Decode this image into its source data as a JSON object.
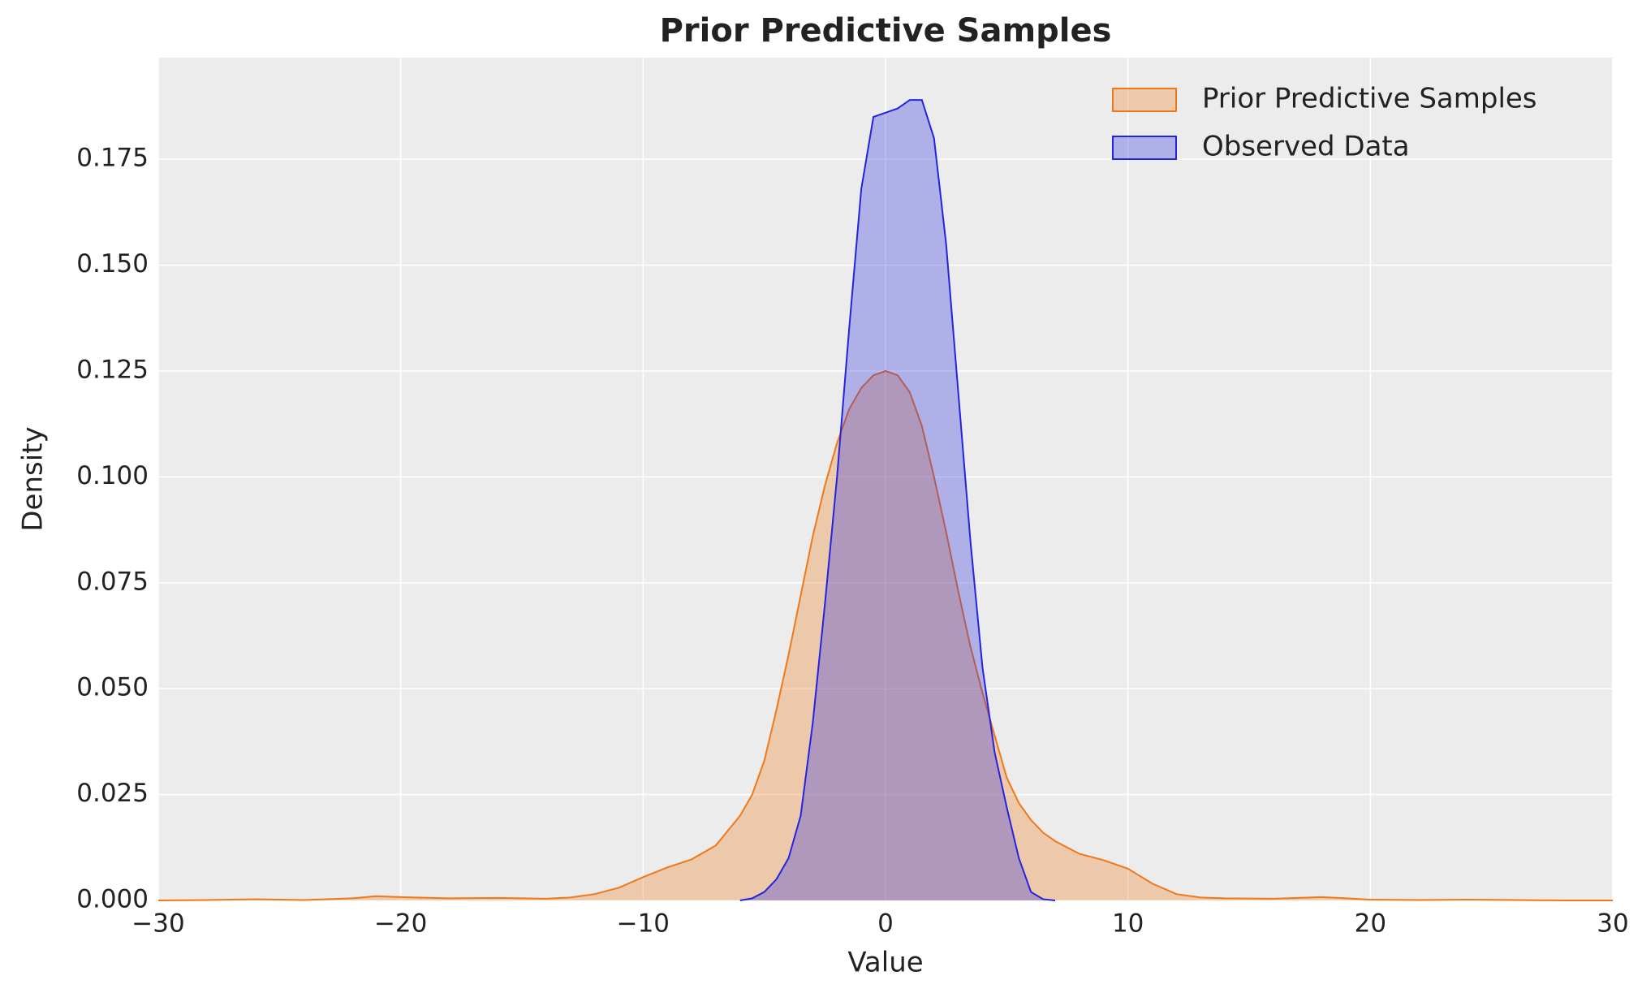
{
  "chart_data": {
    "type": "area",
    "title": "Prior Predictive Samples",
    "x_label": "Value",
    "y_label": "Density",
    "x": [
      -30,
      -28,
      -26,
      -24,
      -22,
      -21,
      -20,
      -18,
      -16,
      -14,
      -13,
      -12,
      -11,
      -10,
      -9,
      -8,
      -7,
      -6,
      -5.5,
      -5,
      -4.5,
      -4,
      -3.5,
      -3,
      -2.5,
      -2,
      -1.5,
      -1,
      -0.5,
      0,
      0.5,
      1,
      1.5,
      2,
      2.5,
      3,
      3.5,
      4,
      4.5,
      5,
      5.5,
      6,
      6.5,
      7,
      8,
      9,
      10,
      11,
      12,
      13,
      14,
      16,
      18,
      19,
      20,
      22,
      24,
      26,
      28,
      30
    ],
    "series": [
      {
        "name": "Prior Predictive Samples",
        "color": "#f07818",
        "values": [
          0,
          0.0001,
          0.0003,
          0.0001,
          0.0005,
          0.001,
          0.0008,
          0.0005,
          0.0006,
          0.0004,
          0.0007,
          0.0015,
          0.003,
          0.0055,
          0.0078,
          0.0097,
          0.013,
          0.02,
          0.025,
          0.033,
          0.045,
          0.058,
          0.072,
          0.086,
          0.098,
          0.108,
          0.116,
          0.121,
          0.124,
          0.125,
          0.124,
          0.12,
          0.112,
          0.1,
          0.087,
          0.073,
          0.06,
          0.049,
          0.039,
          0.029,
          0.023,
          0.019,
          0.016,
          0.014,
          0.011,
          0.0095,
          0.0075,
          0.004,
          0.0015,
          0.0007,
          0.0005,
          0.0004,
          0.0008,
          0.0005,
          0.0002,
          0.0001,
          0.0002,
          0.0001,
          0,
          0
        ]
      },
      {
        "name": "Observed Data",
        "color": "#2323e0",
        "values": [
          null,
          null,
          null,
          null,
          null,
          null,
          null,
          null,
          null,
          null,
          null,
          null,
          null,
          null,
          null,
          null,
          null,
          0,
          0.0005,
          0.002,
          0.005,
          0.01,
          0.02,
          0.042,
          0.07,
          0.1,
          0.135,
          0.168,
          0.185,
          0.186,
          0.187,
          0.189,
          0.189,
          0.18,
          0.155,
          0.12,
          0.085,
          0.055,
          0.035,
          0.022,
          0.01,
          0.002,
          0.0003,
          0,
          null,
          null,
          null,
          null,
          null,
          null,
          null,
          null,
          null,
          null,
          null,
          null,
          null,
          null,
          null,
          null
        ]
      }
    ],
    "xlim": [
      -30,
      30
    ],
    "ylim": [
      0,
      0.199
    ],
    "xticks": [
      {
        "value": -30,
        "label": "−30"
      },
      {
        "value": -20,
        "label": "−20"
      },
      {
        "value": -10,
        "label": "−10"
      },
      0,
      10,
      20,
      30
    ],
    "yticks": [
      {
        "value": 0,
        "label": "0.000"
      },
      0.025,
      {
        "value": 0.05,
        "label": "0.050"
      },
      0.075,
      {
        "value": 0.1,
        "label": "0.100"
      },
      0.125,
      {
        "value": 0.15,
        "label": "0.150"
      },
      0.175
    ],
    "grid": true,
    "legend_position": "upper right"
  }
}
